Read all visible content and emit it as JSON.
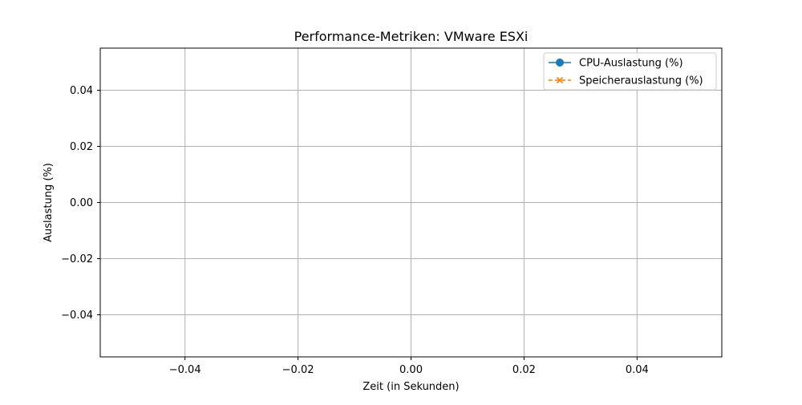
{
  "chart_data": {
    "type": "line",
    "title": "Performance-Metriken: VMware ESXi",
    "xlabel": "Zeit (in Sekunden)",
    "ylabel": "Auslastung (%)",
    "xlim": [
      -0.055,
      0.055
    ],
    "ylim": [
      -0.055,
      0.055
    ],
    "xticks": [
      -0.04,
      -0.02,
      0.0,
      0.02,
      0.04
    ],
    "xtick_labels": [
      "−0.04",
      "−0.02",
      "0.00",
      "0.02",
      "0.04"
    ],
    "yticks": [
      -0.04,
      -0.02,
      0.0,
      0.02,
      0.04
    ],
    "ytick_labels": [
      "−0.04",
      "−0.02",
      "0.00",
      "0.02",
      "0.04"
    ],
    "grid": true,
    "legend_position": "top-right",
    "series": [
      {
        "name": "CPU-Auslastung (%)",
        "x": [],
        "y": [],
        "color": "#1f77b4",
        "marker": "circle",
        "linestyle": "solid"
      },
      {
        "name": "Speicherauslastung (%)",
        "x": [],
        "y": [],
        "color": "#ff7f0e",
        "marker": "x",
        "linestyle": "dashed"
      }
    ]
  }
}
